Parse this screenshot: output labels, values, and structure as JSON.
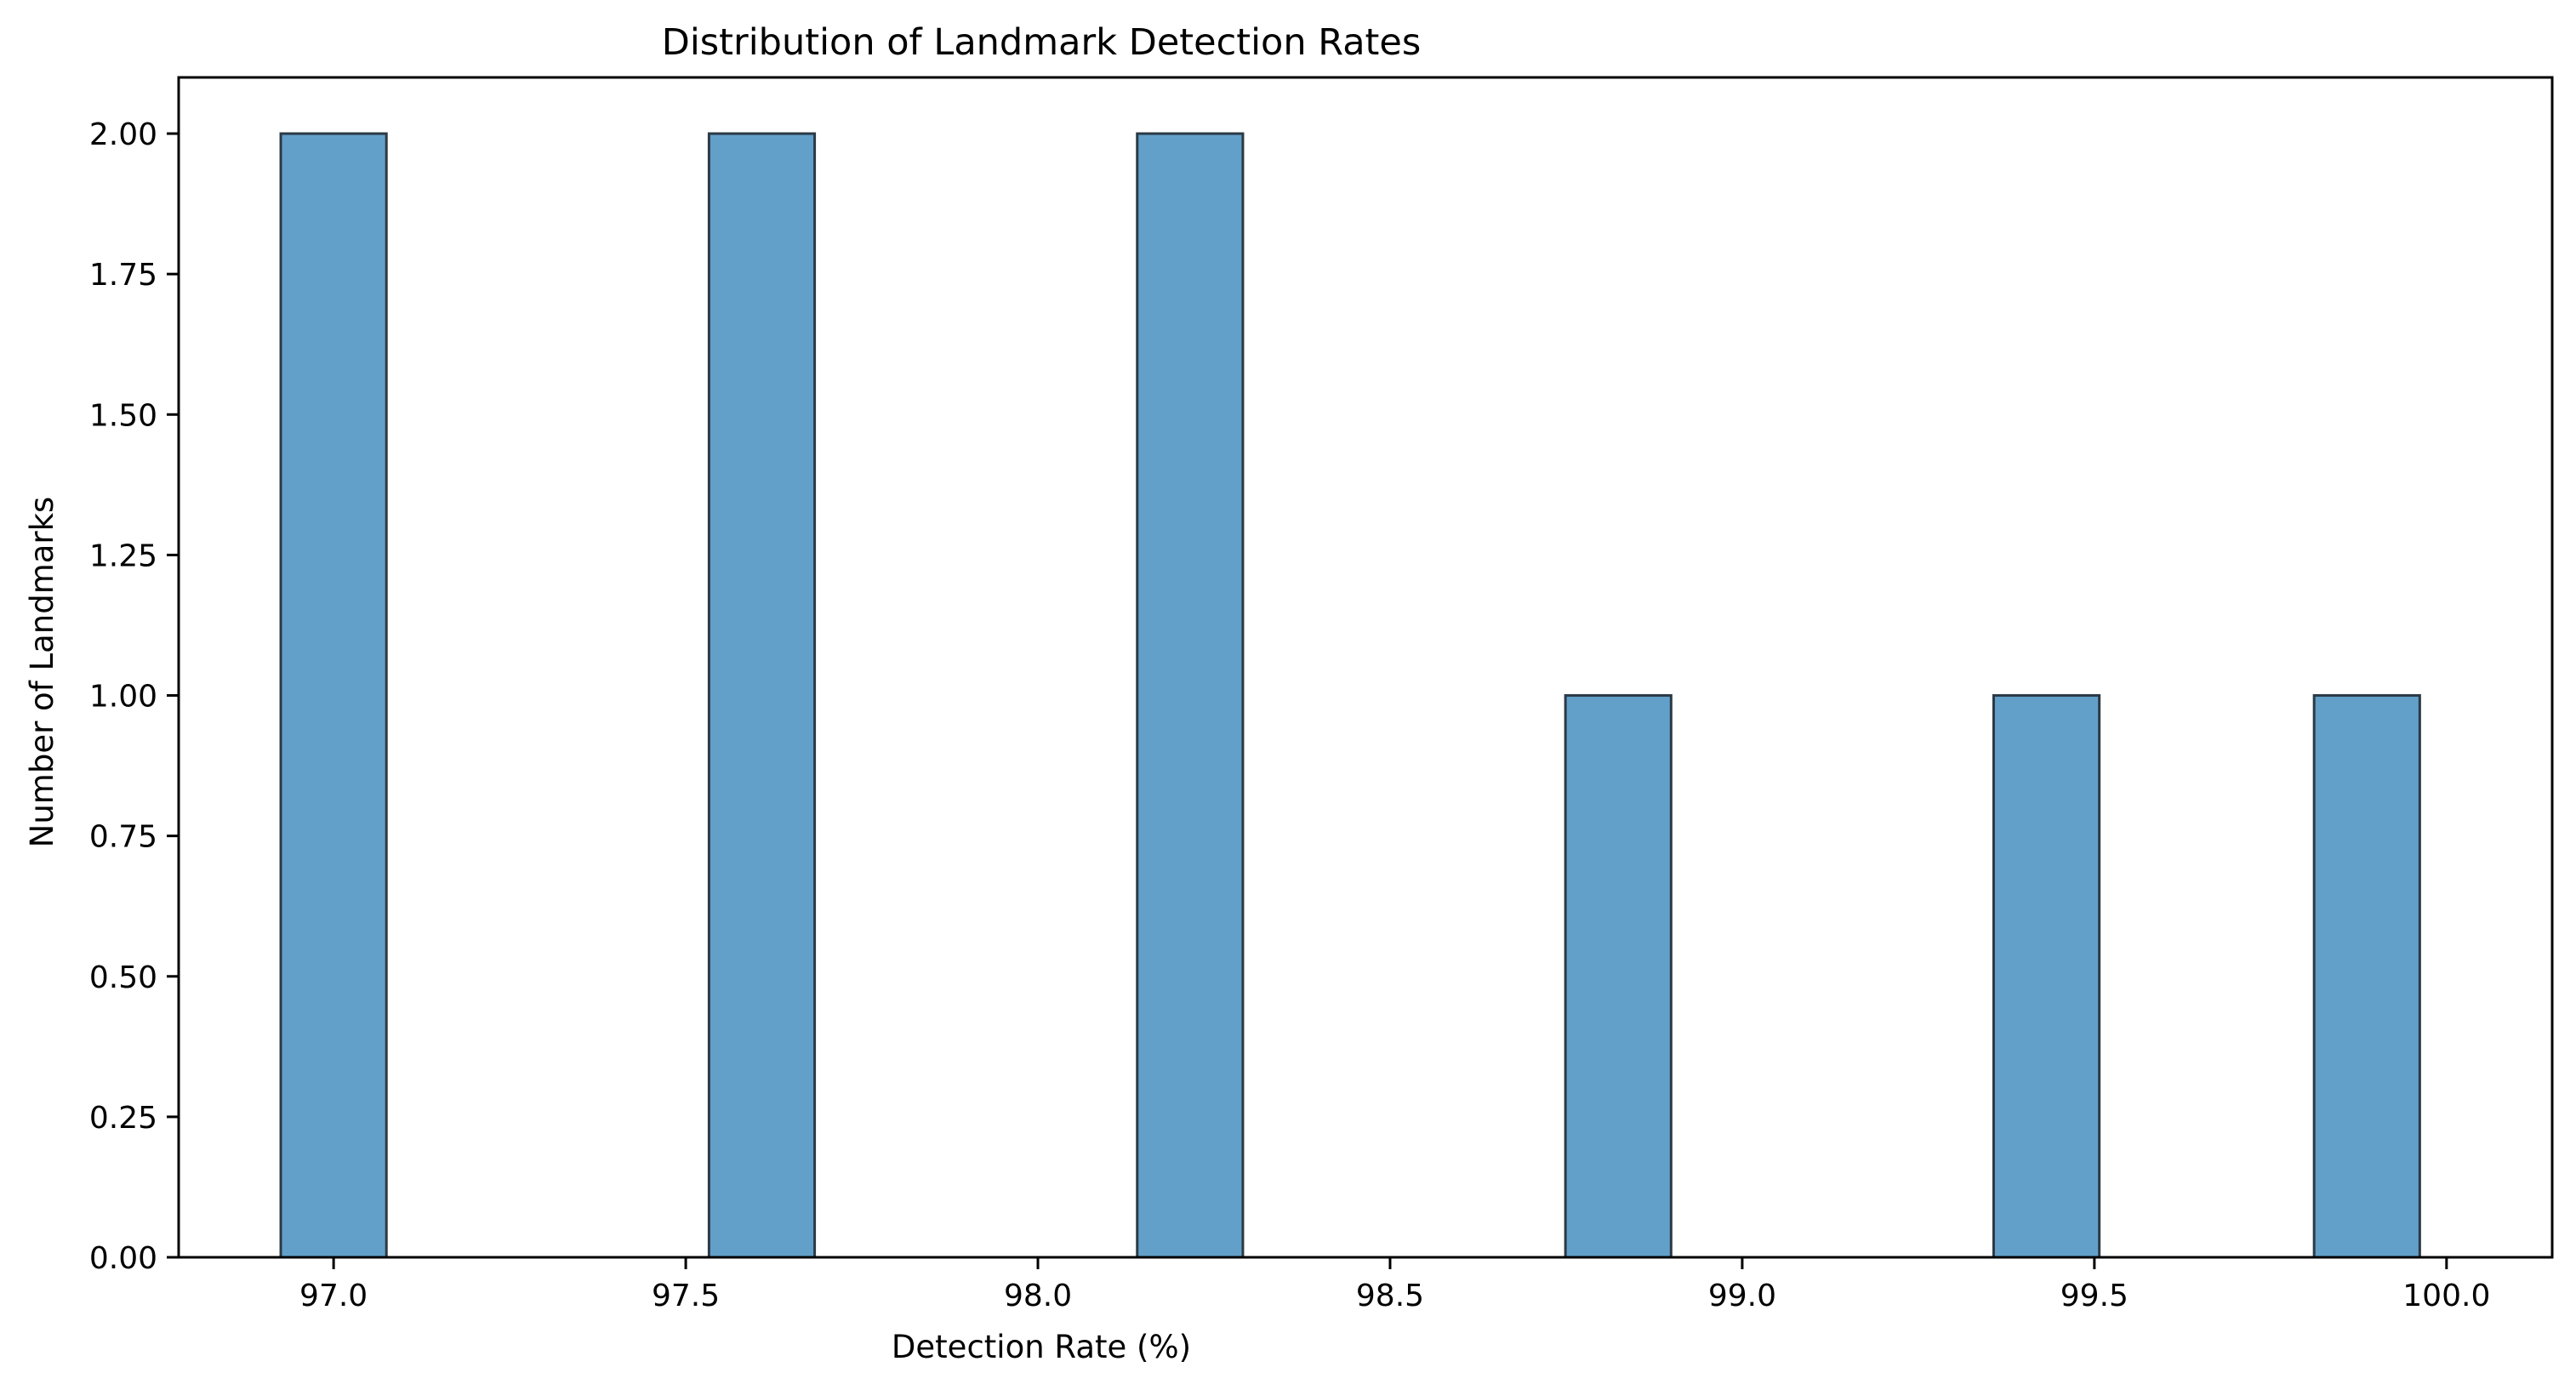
{
  "chart_data": {
    "type": "bar",
    "title": "Distribution of Landmark Detection Rates",
    "xlabel": "Detection Rate (%)",
    "ylabel": "Number of Landmarks",
    "bars": [
      {
        "x0": 96.925,
        "x1": 97.075,
        "value": 2
      },
      {
        "x0": 97.533,
        "x1": 97.683,
        "value": 2
      },
      {
        "x0": 98.141,
        "x1": 98.291,
        "value": 2
      },
      {
        "x0": 98.749,
        "x1": 98.899,
        "value": 1
      },
      {
        "x0": 99.357,
        "x1": 99.507,
        "value": 1
      },
      {
        "x0": 99.812,
        "x1": 99.962,
        "value": 1
      }
    ],
    "xlim": [
      96.78,
      100.15
    ],
    "ylim": [
      0,
      2.1
    ],
    "xticks": [
      97.0,
      97.5,
      98.0,
      98.5,
      99.0,
      99.5,
      100.0
    ],
    "xtick_labels": [
      "97.0",
      "97.5",
      "98.0",
      "98.5",
      "99.0",
      "99.5",
      "100.0"
    ],
    "yticks": [
      0,
      0.25,
      0.5,
      0.75,
      1.0,
      1.25,
      1.5,
      1.75,
      2.0
    ],
    "ytick_labels": [
      "0.00",
      "0.25",
      "0.50",
      "0.75",
      "1.00",
      "1.25",
      "1.50",
      "1.75",
      "2.00"
    ],
    "grid": false,
    "bar_color": "#62a0ca",
    "edge_color": "#2b3a45",
    "spine_color": "#000000"
  }
}
